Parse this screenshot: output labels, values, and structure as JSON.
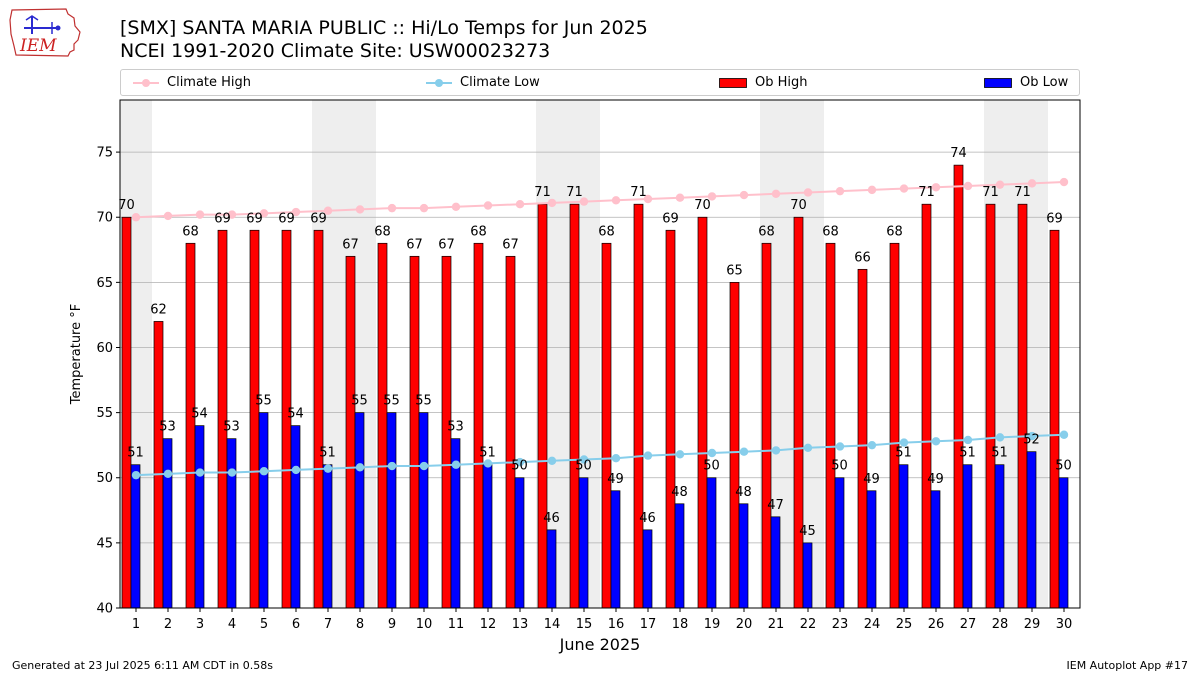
{
  "title_line1": "[SMX] SANTA MARIA PUBLIC :: Hi/Lo Temps for Jun 2025",
  "title_line2": "NCEI 1991-2020 Climate Site: USW00023273",
  "logo_text": "IEM",
  "footer_left": "Generated at 23 Jul 2025 6:11 AM CDT in 0.58s",
  "footer_right": "IEM Autoplot App #17",
  "colors": {
    "ob_high": "#ff0000",
    "ob_low": "#0000ff",
    "climate_high": "#ffc0cb",
    "climate_low": "#87ceeb",
    "weekend_band": "#eeeeee",
    "grid": "#b0b0b0"
  },
  "legend": [
    {
      "label": "Climate High",
      "kind": "line",
      "color": "#ffc0cb"
    },
    {
      "label": "Climate Low",
      "kind": "line",
      "color": "#87ceeb"
    },
    {
      "label": "Ob High",
      "kind": "bar",
      "color": "#ff0000"
    },
    {
      "label": "Ob Low",
      "kind": "bar",
      "color": "#0000ff"
    }
  ],
  "chart_data": {
    "type": "bar",
    "xlabel": "June 2025",
    "ylabel": "Temperature °F",
    "ylim": [
      40,
      79
    ],
    "yticks": [
      40,
      45,
      50,
      55,
      60,
      65,
      70,
      75
    ],
    "grid": true,
    "categories": [
      1,
      2,
      3,
      4,
      5,
      6,
      7,
      8,
      9,
      10,
      11,
      12,
      13,
      14,
      15,
      16,
      17,
      18,
      19,
      20,
      21,
      22,
      23,
      24,
      25,
      26,
      27,
      28,
      29,
      30
    ],
    "weekend_days": [
      1,
      7,
      8,
      14,
      15,
      21,
      22,
      28,
      29
    ],
    "series": [
      {
        "name": "Ob High",
        "type": "bar",
        "values": [
          70,
          62,
          68,
          69,
          69,
          69,
          69,
          67,
          68,
          67,
          67,
          68,
          67,
          71,
          71,
          68,
          71,
          69,
          70,
          65,
          68,
          70,
          68,
          66,
          68,
          71,
          74,
          71,
          71,
          69
        ]
      },
      {
        "name": "Ob Low",
        "type": "bar",
        "values": [
          51,
          53,
          54,
          53,
          55,
          54,
          51,
          55,
          55,
          55,
          53,
          51,
          50,
          46,
          50,
          49,
          46,
          48,
          50,
          48,
          47,
          45,
          50,
          49,
          51,
          49,
          51,
          51,
          52,
          50
        ]
      },
      {
        "name": "Climate High",
        "type": "line",
        "values": [
          70.0,
          70.1,
          70.2,
          70.2,
          70.3,
          70.4,
          70.5,
          70.6,
          70.7,
          70.7,
          70.8,
          70.9,
          71.0,
          71.1,
          71.2,
          71.3,
          71.4,
          71.5,
          71.6,
          71.7,
          71.8,
          71.9,
          72.0,
          72.1,
          72.2,
          72.3,
          72.4,
          72.5,
          72.6,
          72.7
        ]
      },
      {
        "name": "Climate Low",
        "type": "line",
        "values": [
          50.2,
          50.3,
          50.4,
          50.4,
          50.5,
          50.6,
          50.7,
          50.8,
          50.9,
          50.9,
          51.0,
          51.1,
          51.2,
          51.3,
          51.4,
          51.5,
          51.7,
          51.8,
          51.9,
          52.0,
          52.1,
          52.3,
          52.4,
          52.5,
          52.7,
          52.8,
          52.9,
          53.1,
          53.2,
          53.3
        ]
      }
    ]
  }
}
